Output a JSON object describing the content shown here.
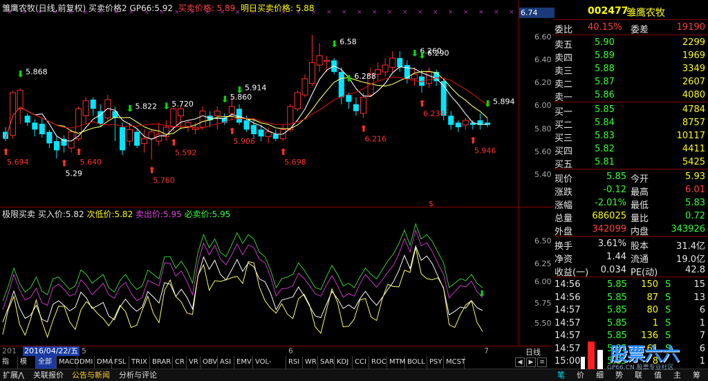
{
  "main_header": {
    "title": "雏鹰农牧(日线,前复权)",
    "indicator": "买卖价格2",
    "gp66_label": "GP66:",
    "gp66_value": "5.92",
    "buy_price_label": "买卖价格:",
    "buy_price_value": "5.89",
    "tomorrow_label": "明日买卖价格:",
    "tomorrow_value": "5.88"
  },
  "price_axis": {
    "top_value": "6.74",
    "ticks": [
      "6.60",
      "6.40",
      "6.20",
      "6.00",
      "5.80",
      "5.60",
      "5.40"
    ]
  },
  "annotations": [
    {
      "text": "5.868",
      "color": "#ffffff"
    },
    {
      "text": "5.694",
      "color": "#ff3030"
    },
    {
      "text": "5.29",
      "color": "#ffffff"
    },
    {
      "text": "5.640",
      "color": "#ff3030"
    },
    {
      "text": "5.822",
      "color": "#ffffff"
    },
    {
      "text": "5.760",
      "color": "#ff3030"
    },
    {
      "text": "5.720",
      "color": "#ffffff"
    },
    {
      "text": "5.592",
      "color": "#ff3030"
    },
    {
      "text": "5.860",
      "color": "#ffffff"
    },
    {
      "text": "5.914",
      "color": "#ffffff"
    },
    {
      "text": "5.906",
      "color": "#ff3030"
    },
    {
      "text": "5.698",
      "color": "#ff3030"
    },
    {
      "text": "6.58",
      "color": "#ffffff"
    },
    {
      "text": "6.288",
      "color": "#ffffff"
    },
    {
      "text": "6.216",
      "color": "#ff3030"
    },
    {
      "text": "6.260",
      "color": "#ffffff"
    },
    {
      "text": "6.290",
      "color": "#ffffff"
    },
    {
      "text": "6.234",
      "color": "#ff3030"
    },
    {
      "text": "5.946",
      "color": "#ff3030"
    },
    {
      "text": "5.894",
      "color": "#ffffff"
    }
  ],
  "dollar_mark": "$",
  "indicator_header": {
    "name": "极限买卖",
    "buy_label": "买入价:",
    "buy_value": "5.82",
    "low_label": "次低价:",
    "low_value": "5.82",
    "sell_label": "卖出价:",
    "sell_value": "5.95",
    "must_sell_label": "必卖价:",
    "must_sell_value": "5.95"
  },
  "indicator_axis": {
    "ticks": [
      "6.50",
      "6.25",
      "6.00",
      "5.75",
      "5.50"
    ]
  },
  "date_axis": {
    "left_stub": "201",
    "selected_date": "2016/04/22/五",
    "month_labels": [
      "5",
      "6",
      "7"
    ],
    "period_button": "日线"
  },
  "indicator_tabs": [
    "指标",
    "模板",
    "全部",
    "MACD",
    "DMI",
    "DMA",
    "FSL",
    "TRIX",
    "BRAR",
    "CR",
    "VR",
    "OBV",
    "ASI",
    "EMV",
    "VOL-TDX",
    "RSI",
    "WR",
    "SAR",
    "KDJ",
    "CCI",
    "ROC",
    "MTM",
    "BOLL",
    "PSY",
    "MCST"
  ],
  "bottom_tabs": [
    "扩展⋀",
    "关联报价",
    "公告与新闻",
    "分析与评论"
  ],
  "stock": {
    "code": "002477",
    "name": "雏鹰农牧",
    "weibi_label": "委比",
    "weibi_value": "40.15%",
    "weicha_label": "委差",
    "weicha_value": "19190"
  },
  "sell_orders": [
    {
      "label": "卖五",
      "price": "5.90",
      "vol": "2299"
    },
    {
      "label": "卖四",
      "price": "5.89",
      "vol": "1969"
    },
    {
      "label": "卖三",
      "price": "5.88",
      "vol": "3349"
    },
    {
      "label": "卖二",
      "price": "5.87",
      "vol": "2607"
    },
    {
      "label": "卖一",
      "price": "5.86",
      "vol": "4080"
    }
  ],
  "buy_orders": [
    {
      "label": "买一",
      "price": "5.85",
      "vol": "4784"
    },
    {
      "label": "买二",
      "price": "5.84",
      "vol": "8757"
    },
    {
      "label": "买三",
      "price": "5.83",
      "vol": "10117"
    },
    {
      "label": "买四",
      "price": "5.82",
      "vol": "4411"
    },
    {
      "label": "买五",
      "price": "5.81",
      "vol": "5425"
    }
  ],
  "quote": [
    {
      "l1": "现价",
      "v1": "5.85",
      "c1": "green",
      "l2": "今开",
      "v2": "5.93",
      "c2": "yellow"
    },
    {
      "l1": "涨跌",
      "v1": "-0.12",
      "c1": "green",
      "l2": "最高",
      "v2": "6.01",
      "c2": "red"
    },
    {
      "l1": "涨幅",
      "v1": "-2.01%",
      "c1": "green",
      "l2": "最低",
      "v2": "5.83",
      "c2": "green"
    },
    {
      "l1": "总量",
      "v1": "686025",
      "c1": "yellow",
      "l2": "量比",
      "v2": "0.72",
      "c2": "green"
    },
    {
      "l1": "外盘",
      "v1": "342099",
      "c1": "red",
      "l2": "内盘",
      "v2": "343926",
      "c2": "green"
    }
  ],
  "fundamentals": [
    {
      "l1": "换手",
      "v1": "3.61%",
      "l2": "股本",
      "v2": "31.4亿"
    },
    {
      "l1": "净资",
      "v1": "1.44",
      "l2": "流通",
      "v2": "19.0亿"
    },
    {
      "l1": "收益(一)",
      "v1": "0.034",
      "l2": "PE(动)",
      "v2": "42.8"
    }
  ],
  "ticks": [
    {
      "time": "14:56",
      "price": "5.85",
      "vol": "150",
      "side": "S",
      "n": "15"
    },
    {
      "time": "14:56",
      "price": "5.85",
      "vol": "87",
      "side": "S",
      "n": "13"
    },
    {
      "time": "14:57",
      "price": "5.85",
      "vol": "80",
      "side": "S",
      "n": "6"
    },
    {
      "time": "14:57",
      "price": "5.85",
      "vol": "1",
      "side": "S",
      "n": "1"
    },
    {
      "time": "14:57",
      "price": "5.85",
      "vol": "136",
      "side": "S",
      "n": "7"
    },
    {
      "time": "14:57",
      "price": "5.85",
      "vol": "61",
      "side": "S",
      "n": "6"
    },
    {
      "time": "15:00",
      "price": "5.85",
      "vol": "8",
      "side": "",
      "n": "1"
    }
  ],
  "sidebar_bottom_tabs": [
    "笔",
    "价",
    "细",
    "势",
    "联",
    "值",
    "主",
    "筹"
  ],
  "watermark": {
    "brand": "股票六六",
    "site": "GP66.CN 股票专业社区"
  },
  "colors": {
    "up": "#ff3030",
    "down": "#00e5ff",
    "ma_white": "#ffffff",
    "ma_yellow": "#ffff66",
    "ma_red": "#d01010",
    "green_line": "#33cc33",
    "magenta_line": "#cc33cc"
  }
}
